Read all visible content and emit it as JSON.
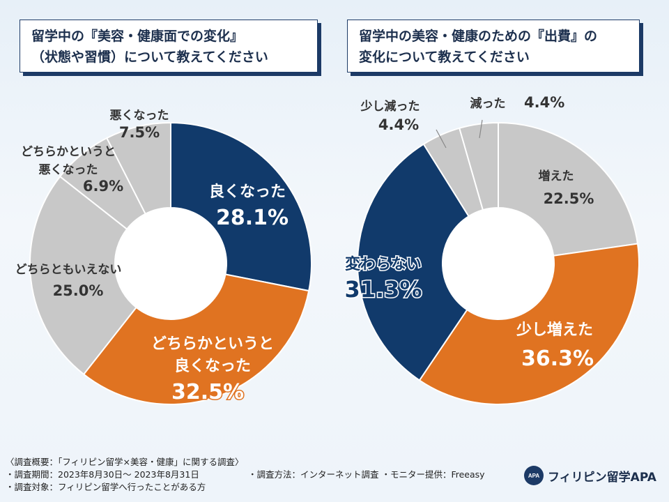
{
  "chart_data": [
    {
      "type": "pie",
      "title_lines": [
        "留学中の『美容・健康面での変化』",
        "（状態や習慣）について教えてください"
      ],
      "slices": [
        {
          "label": [
            "良くなった"
          ],
          "value": 28.1,
          "value_text": "28.1%",
          "color": "#113a6b"
        },
        {
          "label": [
            "どちらかというと",
            "良くなった"
          ],
          "value": 32.5,
          "value_text": "32.5%",
          "color": "#e07321"
        },
        {
          "label": [
            "どちらともいえない"
          ],
          "value": 25.0,
          "value_text": "25.0%",
          "color": "#c8c8c8"
        },
        {
          "label": [
            "どちらかというと",
            "悪くなった"
          ],
          "value": 6.9,
          "value_text": "6.9%",
          "color": "#c8c8c8"
        },
        {
          "label": [
            "悪くなった"
          ],
          "value": 7.5,
          "value_text": "7.5%",
          "color": "#c8c8c8"
        }
      ]
    },
    {
      "type": "pie",
      "title_lines": [
        "留学中の美容・健康のための『出費』の",
        "変化について教えてください"
      ],
      "slices": [
        {
          "label": [
            "増えた"
          ],
          "value": 22.5,
          "value_text": "22.5%",
          "color": "#c8c8c8"
        },
        {
          "label": [
            "少し増えた"
          ],
          "value": 36.3,
          "value_text": "36.3%",
          "color": "#e07321"
        },
        {
          "label": [
            "変わらない"
          ],
          "value": 31.3,
          "value_text": "31.3%",
          "color": "#113a6b"
        },
        {
          "label": [
            "少し減った"
          ],
          "value": 4.4,
          "value_text": "4.4%",
          "color": "#c8c8c8"
        },
        {
          "label": [
            "減った"
          ],
          "value": 4.4,
          "value_text": "4.4%",
          "color": "#c8c8c8"
        }
      ]
    }
  ],
  "footer": {
    "overview": "〈調査概要：「フィリピン留学×美容・健康」に関する調査〉",
    "period": "・調査期間：2023年8月30日～ 2023年8月31日",
    "method": "・調査方法：インターネット調査 ・モニター提供：Freeasy",
    "target": "・調査対象：フィリピン留学へ行ったことがある方"
  },
  "brand": {
    "logo_text": "APA",
    "name": "フィリピン留学APA"
  }
}
